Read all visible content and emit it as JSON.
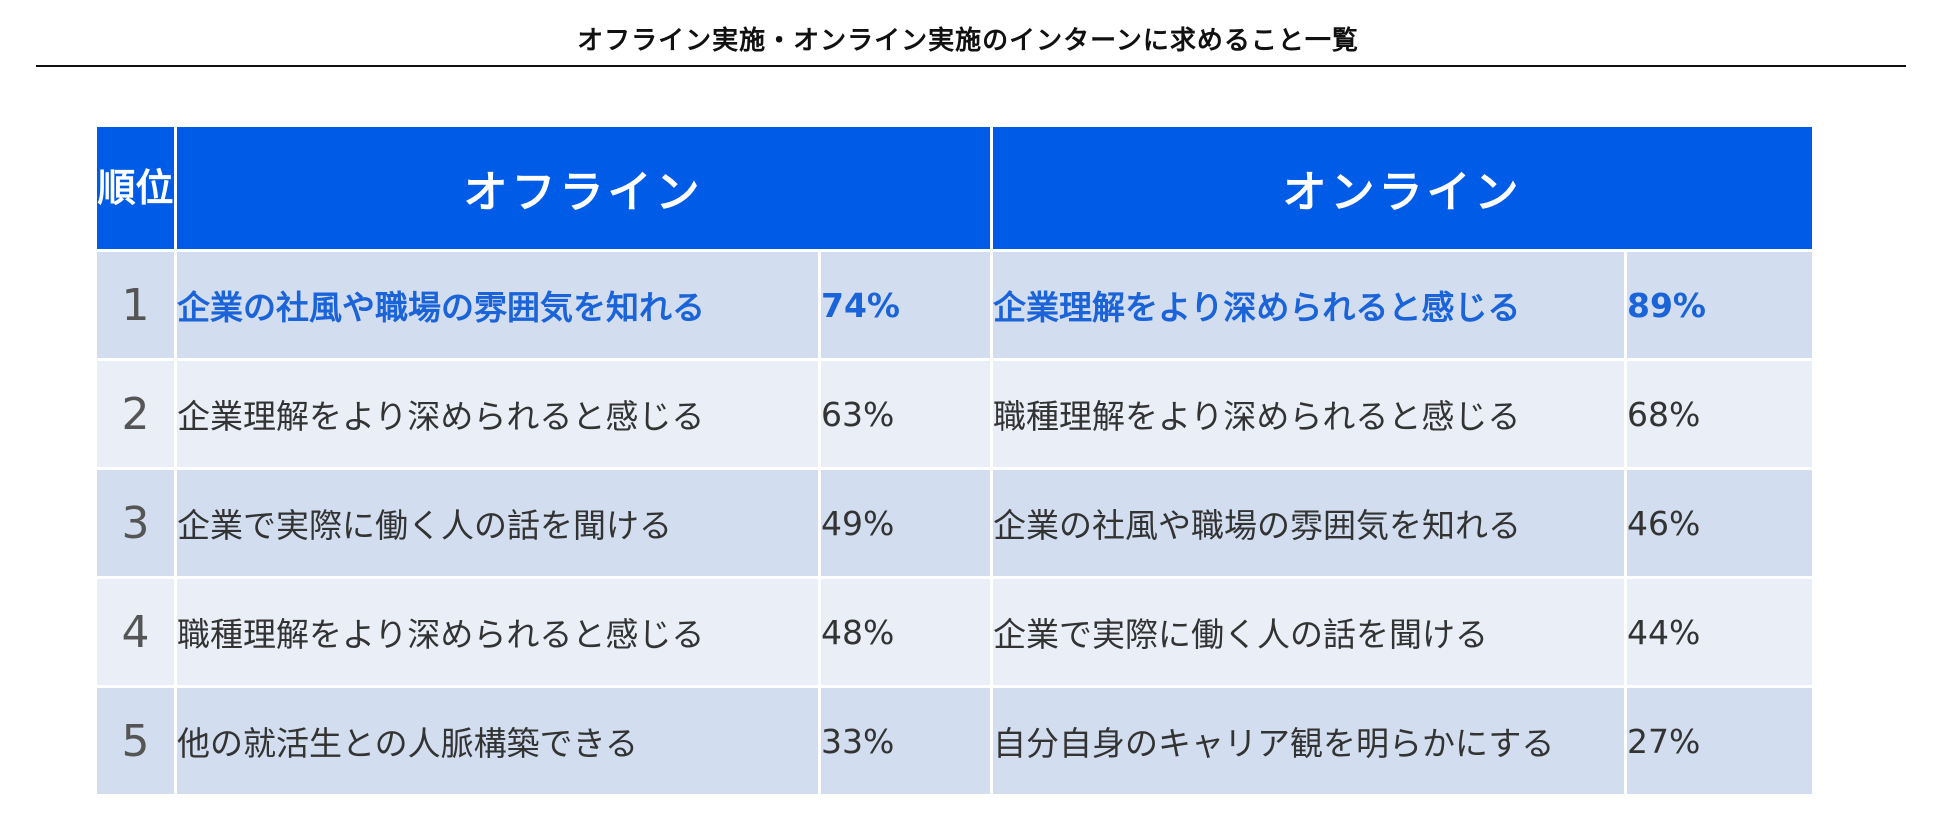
{
  "title": "オフライン実施・オンライン実施のインターンに求めること一覧",
  "header": {
    "rank": "順位",
    "offline": "オフライン",
    "online": "オンライン"
  },
  "colors": {
    "header_bg": "#005ce6",
    "row_odd": "#d2ddef",
    "row_even": "#e9eef7",
    "highlight_text": "#1a63d8"
  },
  "chart_data": {
    "type": "table",
    "title": "オフライン実施・オンライン実施のインターンに求めること一覧",
    "columns": [
      "順位",
      "オフライン",
      "",
      "オンライン",
      ""
    ],
    "rows": [
      {
        "rank": "1",
        "offline_item": "企業の社風や職場の雰囲気を知れる",
        "offline_pct": "74%",
        "online_item": "企業理解をより深められると感じる",
        "online_pct": "89%"
      },
      {
        "rank": "2",
        "offline_item": "企業理解をより深められると感じる",
        "offline_pct": "63%",
        "online_item": "職種理解をより深められると感じる",
        "online_pct": "68%"
      },
      {
        "rank": "3",
        "offline_item": "企業で実際に働く人の話を聞ける",
        "offline_pct": "49%",
        "online_item": "企業の社風や職場の雰囲気を知れる",
        "online_pct": "46%"
      },
      {
        "rank": "4",
        "offline_item": "職種理解をより深められると感じる",
        "offline_pct": "48%",
        "online_item": "企業で実際に働く人の話を聞ける",
        "online_pct": "44%"
      },
      {
        "rank": "5",
        "offline_item": "他の就活生との人脈構築できる",
        "offline_pct": "33%",
        "online_item": "自分自身のキャリア観を明らかにする",
        "online_pct": "27%"
      }
    ]
  }
}
